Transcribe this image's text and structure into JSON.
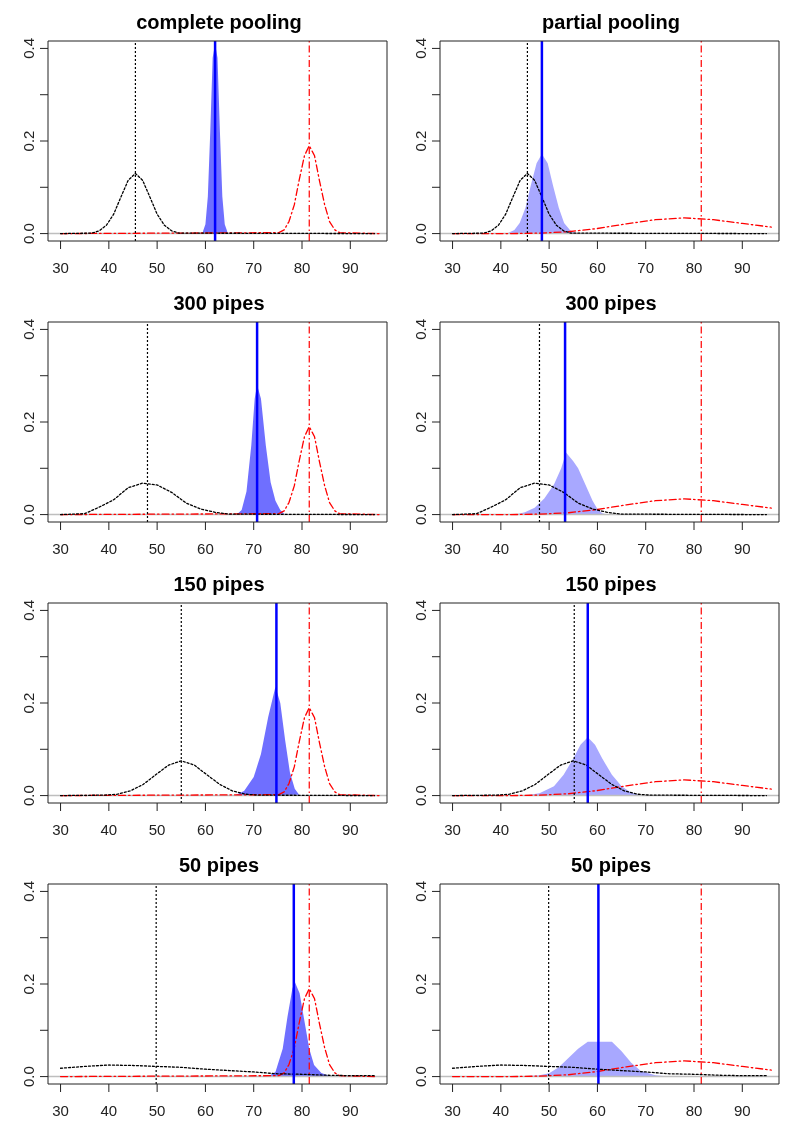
{
  "chart_data": [
    {
      "type": "line",
      "title": "complete pooling",
      "xlim": [
        27.4,
        97.6
      ],
      "ylim": [
        -0.016,
        0.416
      ],
      "xticks": [
        30,
        40,
        50,
        60,
        70,
        80,
        90
      ],
      "yticks": [
        {
          "value": 0,
          "label": "0.0"
        },
        {
          "value": 0.1,
          "label": null
        },
        {
          "value": 0.2,
          "label": "0.2"
        },
        {
          "value": 0.3,
          "label": null
        },
        {
          "value": 0.4,
          "label": "0.4"
        }
      ],
      "series": [
        {
          "type": "area",
          "color": "#6f6fff",
          "x": [
            59.5,
            60,
            60.5,
            61,
            61.5,
            62,
            62.5,
            63,
            63.5,
            64,
            64.5
          ],
          "values": [
            0.005,
            0.02,
            0.08,
            0.22,
            0.38,
            0.41,
            0.38,
            0.22,
            0.08,
            0.02,
            0.005
          ]
        },
        {
          "type": "line",
          "color": "#000000",
          "line_style": "dotted",
          "x": [
            30,
            36.5,
            38,
            39.5,
            41,
            42.5,
            44,
            45.5,
            47,
            48.5,
            50,
            51.5,
            53,
            54.5,
            95
          ],
          "values": [
            0,
            0.001,
            0.006,
            0.018,
            0.042,
            0.079,
            0.115,
            0.13,
            0.115,
            0.079,
            0.042,
            0.018,
            0.006,
            0.001,
            0
          ]
        },
        {
          "type": "line",
          "color": "#ff0000",
          "line_style": "dashed",
          "x": [
            30,
            75.2,
            76.3,
            77.3,
            78.4,
            79.4,
            80.5,
            81.5,
            82.6,
            83.6,
            84.7,
            85.7,
            86.8,
            87.8,
            96
          ],
          "values": [
            0,
            0.002,
            0.008,
            0.026,
            0.062,
            0.115,
            0.168,
            0.19,
            0.168,
            0.115,
            0.062,
            0.026,
            0.008,
            0.002,
            0
          ]
        }
      ],
      "ref_lines": [
        {
          "axis": "y",
          "value": 0,
          "color": "#bebebe",
          "line_style": "solid"
        },
        {
          "axis": "x",
          "value": 45.5,
          "color": "#000000",
          "line_style": "dotted"
        },
        {
          "axis": "x",
          "value": 62,
          "color": "#0000ff",
          "line_style": "solid"
        },
        {
          "axis": "x",
          "value": 81.5,
          "color": "#ff0000",
          "line_style": "dashed"
        }
      ]
    },
    {
      "type": "line",
      "title": "partial pooling",
      "xlim": [
        27.4,
        97.6
      ],
      "ylim": [
        -0.016,
        0.416
      ],
      "xticks": [
        30,
        40,
        50,
        60,
        70,
        80,
        90
      ],
      "yticks": [
        {
          "value": 0,
          "label": "0.0"
        },
        {
          "value": 0.1,
          "label": null
        },
        {
          "value": 0.2,
          "label": "0.2"
        },
        {
          "value": 0.3,
          "label": null
        },
        {
          "value": 0.4,
          "label": "0.4"
        }
      ],
      "series": [
        {
          "type": "area",
          "color": "#a8a8ff",
          "x": [
            41.6,
            42.8,
            43.9,
            45.1,
            46.2,
            47.4,
            48.5,
            49.7,
            50.8,
            52,
            53.1,
            54.3,
            55.4
          ],
          "values": [
            0.002,
            0.008,
            0.023,
            0.056,
            0.104,
            0.152,
            0.172,
            0.152,
            0.104,
            0.056,
            0.023,
            0.008,
            0.002
          ]
        },
        {
          "type": "line",
          "color": "#000000",
          "line_style": "dotted",
          "x": [
            30,
            36.5,
            38,
            39.5,
            41,
            42.5,
            44,
            45.5,
            47,
            48.5,
            50,
            51.5,
            53,
            54.5,
            95
          ],
          "values": [
            0,
            0.001,
            0.006,
            0.018,
            0.042,
            0.079,
            0.115,
            0.13,
            0.115,
            0.079,
            0.042,
            0.018,
            0.006,
            0.001,
            0
          ]
        },
        {
          "type": "line",
          "color": "#ff0000",
          "line_style": "dashed",
          "x": [
            30,
            36,
            42,
            48,
            54,
            60,
            66,
            72,
            78,
            84,
            90,
            96
          ],
          "values": [
            0,
            0,
            0,
            0.001,
            0.004,
            0.011,
            0.021,
            0.03,
            0.034,
            0.03,
            0.022,
            0.014
          ]
        }
      ],
      "ref_lines": [
        {
          "axis": "y",
          "value": 0,
          "color": "#bebebe",
          "line_style": "solid"
        },
        {
          "axis": "x",
          "value": 45.5,
          "color": "#000000",
          "line_style": "dotted"
        },
        {
          "axis": "x",
          "value": 48.5,
          "color": "#0000ff",
          "line_style": "solid"
        },
        {
          "axis": "x",
          "value": 81.5,
          "color": "#ff0000",
          "line_style": "dashed"
        }
      ]
    },
    {
      "type": "line",
      "title": "300 pipes",
      "xlim": [
        27.4,
        97.6
      ],
      "ylim": [
        -0.016,
        0.416
      ],
      "xticks": [
        30,
        40,
        50,
        60,
        70,
        80,
        90
      ],
      "yticks": [
        {
          "value": 0,
          "label": "0.0"
        },
        {
          "value": 0.1,
          "label": null
        },
        {
          "value": 0.2,
          "label": "0.2"
        },
        {
          "value": 0.3,
          "label": null
        },
        {
          "value": 0.4,
          "label": "0.4"
        }
      ],
      "series": [
        {
          "type": "area",
          "color": "#6f6fff",
          "x": [
            66.5,
            67.5,
            68.5,
            69.5,
            70.2,
            70.7,
            71.5,
            72.5,
            73.5,
            74.5,
            75.5,
            76.5
          ],
          "values": [
            0,
            0.01,
            0.05,
            0.15,
            0.25,
            0.28,
            0.25,
            0.15,
            0.07,
            0.03,
            0.01,
            0
          ]
        },
        {
          "type": "line",
          "color": "#000000",
          "line_style": "dotted",
          "x": [
            30,
            35,
            38,
            41,
            44,
            47,
            50,
            53,
            56,
            59,
            62,
            65,
            95
          ],
          "values": [
            0,
            0.002,
            0.016,
            0.032,
            0.058,
            0.068,
            0.064,
            0.048,
            0.025,
            0.012,
            0.005,
            0.001,
            0
          ]
        },
        {
          "type": "line",
          "color": "#ff0000",
          "line_style": "dashed",
          "x": [
            30,
            75.2,
            76.3,
            77.3,
            78.4,
            79.4,
            80.5,
            81.5,
            82.6,
            83.6,
            84.7,
            85.7,
            86.8,
            87.8,
            96
          ],
          "values": [
            0,
            0.002,
            0.008,
            0.026,
            0.062,
            0.115,
            0.168,
            0.19,
            0.168,
            0.115,
            0.062,
            0.026,
            0.008,
            0.002,
            0
          ]
        }
      ],
      "ref_lines": [
        {
          "axis": "y",
          "value": 0,
          "color": "#bebebe",
          "line_style": "solid"
        },
        {
          "axis": "x",
          "value": 48,
          "color": "#000000",
          "line_style": "dotted"
        },
        {
          "axis": "x",
          "value": 70.7,
          "color": "#0000ff",
          "line_style": "solid"
        },
        {
          "axis": "x",
          "value": 81.5,
          "color": "#ff0000",
          "line_style": "dashed"
        }
      ]
    },
    {
      "type": "line",
      "title": "300 pipes",
      "xlim": [
        27.4,
        97.6
      ],
      "ylim": [
        -0.016,
        0.416
      ],
      "xticks": [
        30,
        40,
        50,
        60,
        70,
        80,
        90
      ],
      "yticks": [
        {
          "value": 0,
          "label": "0.0"
        },
        {
          "value": 0.1,
          "label": null
        },
        {
          "value": 0.2,
          "label": "0.2"
        },
        {
          "value": 0.3,
          "label": null
        },
        {
          "value": 0.4,
          "label": "0.4"
        }
      ],
      "series": [
        {
          "type": "area",
          "color": "#a8a8ff",
          "x": [
            43,
            45,
            47,
            49,
            51,
            52.5,
            53.5,
            55,
            56,
            57.5,
            59,
            60,
            61,
            62
          ],
          "values": [
            0,
            0.005,
            0.015,
            0.035,
            0.065,
            0.1,
            0.134,
            0.115,
            0.1,
            0.065,
            0.03,
            0.012,
            0.003,
            0
          ]
        },
        {
          "type": "line",
          "color": "#000000",
          "line_style": "dotted",
          "x": [
            30,
            35,
            38,
            41,
            44,
            47,
            50,
            53,
            56,
            59,
            62,
            65,
            95
          ],
          "values": [
            0,
            0.002,
            0.016,
            0.032,
            0.058,
            0.068,
            0.064,
            0.048,
            0.025,
            0.012,
            0.005,
            0.001,
            0
          ]
        },
        {
          "type": "line",
          "color": "#ff0000",
          "line_style": "dashed",
          "x": [
            30,
            36,
            42,
            48,
            54,
            60,
            66,
            72,
            78,
            84,
            90,
            96
          ],
          "values": [
            0,
            0,
            0,
            0.001,
            0.004,
            0.011,
            0.021,
            0.03,
            0.034,
            0.03,
            0.022,
            0.014
          ]
        }
      ],
      "ref_lines": [
        {
          "axis": "y",
          "value": 0,
          "color": "#bebebe",
          "line_style": "solid"
        },
        {
          "axis": "x",
          "value": 48,
          "color": "#000000",
          "line_style": "dotted"
        },
        {
          "axis": "x",
          "value": 53.3,
          "color": "#0000ff",
          "line_style": "solid"
        },
        {
          "axis": "x",
          "value": 81.5,
          "color": "#ff0000",
          "line_style": "dashed"
        }
      ]
    },
    {
      "type": "line",
      "title": "150 pipes",
      "xlim": [
        27.4,
        97.6
      ],
      "ylim": [
        -0.016,
        0.416
      ],
      "xticks": [
        30,
        40,
        50,
        60,
        70,
        80,
        90
      ],
      "yticks": [
        {
          "value": 0,
          "label": "0.0"
        },
        {
          "value": 0.1,
          "label": null
        },
        {
          "value": 0.2,
          "label": "0.2"
        },
        {
          "value": 0.3,
          "label": null
        },
        {
          "value": 0.4,
          "label": "0.4"
        }
      ],
      "series": [
        {
          "type": "area",
          "color": "#6f6fff",
          "x": [
            66,
            68,
            70,
            71.5,
            73,
            74.5,
            75.5,
            76.5,
            77.5,
            78.5,
            79.5
          ],
          "values": [
            0,
            0.01,
            0.04,
            0.09,
            0.17,
            0.235,
            0.2,
            0.12,
            0.05,
            0.015,
            0
          ]
        },
        {
          "type": "line",
          "color": "#000000",
          "line_style": "dotted",
          "x": [
            30,
            39.1,
            41.8,
            44.4,
            47.1,
            49.7,
            52.4,
            55,
            57.7,
            60.3,
            63,
            65.6,
            68.3,
            70.9,
            95
          ],
          "values": [
            0,
            0.001,
            0.003,
            0.01,
            0.024,
            0.045,
            0.066,
            0.075,
            0.066,
            0.045,
            0.024,
            0.01,
            0.003,
            0.001,
            0
          ]
        },
        {
          "type": "line",
          "color": "#ff0000",
          "line_style": "dashed",
          "x": [
            30,
            75.2,
            76.3,
            77.3,
            78.4,
            79.4,
            80.5,
            81.5,
            82.6,
            83.6,
            84.7,
            85.7,
            86.8,
            87.8,
            96
          ],
          "values": [
            0,
            0.002,
            0.008,
            0.026,
            0.062,
            0.115,
            0.168,
            0.19,
            0.168,
            0.115,
            0.062,
            0.026,
            0.008,
            0.002,
            0
          ]
        }
      ],
      "ref_lines": [
        {
          "axis": "y",
          "value": 0,
          "color": "#bebebe",
          "line_style": "solid"
        },
        {
          "axis": "x",
          "value": 55,
          "color": "#000000",
          "line_style": "dotted"
        },
        {
          "axis": "x",
          "value": 74.7,
          "color": "#0000ff",
          "line_style": "solid"
        },
        {
          "axis": "x",
          "value": 81.5,
          "color": "#ff0000",
          "line_style": "dashed"
        }
      ]
    },
    {
      "type": "line",
      "title": "150 pipes",
      "xlim": [
        27.4,
        97.6
      ],
      "ylim": [
        -0.016,
        0.416
      ],
      "xticks": [
        30,
        40,
        50,
        60,
        70,
        80,
        90
      ],
      "yticks": [
        {
          "value": 0,
          "label": "0.0"
        },
        {
          "value": 0.1,
          "label": null
        },
        {
          "value": 0.2,
          "label": "0.2"
        },
        {
          "value": 0.3,
          "label": null
        },
        {
          "value": 0.4,
          "label": "0.4"
        }
      ],
      "series": [
        {
          "type": "area",
          "color": "#a8a8ff",
          "x": [
            45,
            48,
            51,
            53,
            55,
            56.5,
            58,
            59.5,
            61,
            63,
            65,
            67,
            69
          ],
          "values": [
            0,
            0.005,
            0.02,
            0.045,
            0.08,
            0.11,
            0.126,
            0.11,
            0.08,
            0.045,
            0.02,
            0.006,
            0
          ]
        },
        {
          "type": "line",
          "color": "#000000",
          "line_style": "dotted",
          "x": [
            30,
            39.1,
            41.8,
            44.4,
            47.1,
            49.7,
            52.4,
            55,
            57.7,
            60.3,
            63,
            65.6,
            68.3,
            70.9,
            95
          ],
          "values": [
            0,
            0.001,
            0.003,
            0.01,
            0.024,
            0.045,
            0.066,
            0.075,
            0.066,
            0.045,
            0.024,
            0.01,
            0.003,
            0.001,
            0
          ]
        },
        {
          "type": "line",
          "color": "#ff0000",
          "line_style": "dashed",
          "x": [
            30,
            36,
            42,
            48,
            54,
            60,
            66,
            72,
            78,
            84,
            90,
            96
          ],
          "values": [
            0,
            0,
            0,
            0.001,
            0.004,
            0.011,
            0.021,
            0.03,
            0.034,
            0.03,
            0.022,
            0.014
          ]
        }
      ],
      "ref_lines": [
        {
          "axis": "y",
          "value": 0,
          "color": "#bebebe",
          "line_style": "solid"
        },
        {
          "axis": "x",
          "value": 55.2,
          "color": "#000000",
          "line_style": "dotted"
        },
        {
          "axis": "x",
          "value": 58,
          "color": "#0000ff",
          "line_style": "solid"
        },
        {
          "axis": "x",
          "value": 81.5,
          "color": "#ff0000",
          "line_style": "dashed"
        }
      ]
    },
    {
      "type": "line",
      "title": "50 pipes",
      "xlim": [
        27.4,
        97.6
      ],
      "ylim": [
        -0.016,
        0.416
      ],
      "xticks": [
        30,
        40,
        50,
        60,
        70,
        80,
        90
      ],
      "yticks": [
        {
          "value": 0,
          "label": "0.0"
        },
        {
          "value": 0.1,
          "label": null
        },
        {
          "value": 0.2,
          "label": "0.2"
        },
        {
          "value": 0.3,
          "label": null
        },
        {
          "value": 0.4,
          "label": "0.4"
        }
      ],
      "series": [
        {
          "type": "area",
          "color": "#6f6fff",
          "x": [
            73,
            74.5,
            76,
            77,
            78,
            78.5,
            79.5,
            80.5,
            81.5,
            82.5,
            84,
            86
          ],
          "values": [
            0,
            0.01,
            0.06,
            0.13,
            0.19,
            0.205,
            0.18,
            0.12,
            0.06,
            0.025,
            0.008,
            0
          ]
        },
        {
          "type": "line",
          "color": "#000000",
          "line_style": "dotted",
          "x": [
            30,
            35,
            40,
            45,
            50,
            55,
            60,
            65,
            70,
            75,
            80,
            85,
            90,
            95
          ],
          "values": [
            0.018,
            0.022,
            0.025,
            0.024,
            0.022,
            0.02,
            0.016,
            0.013,
            0.01,
            0.006,
            0.005,
            0.003,
            0.002,
            0.002
          ]
        },
        {
          "type": "line",
          "color": "#ff0000",
          "line_style": "dashed",
          "x": [
            30,
            75.2,
            76.3,
            77.3,
            78.4,
            79.4,
            80.5,
            81.5,
            82.6,
            83.6,
            84.7,
            85.7,
            86.8,
            87.8,
            95
          ],
          "values": [
            0,
            0.002,
            0.008,
            0.026,
            0.062,
            0.115,
            0.168,
            0.19,
            0.168,
            0.115,
            0.062,
            0.026,
            0.008,
            0.002,
            0
          ]
        }
      ],
      "ref_lines": [
        {
          "axis": "y",
          "value": 0,
          "color": "#bebebe",
          "line_style": "solid"
        },
        {
          "axis": "x",
          "value": 49.8,
          "color": "#000000",
          "line_style": "dotted"
        },
        {
          "axis": "x",
          "value": 78.3,
          "color": "#0000ff",
          "line_style": "solid"
        },
        {
          "axis": "x",
          "value": 81.5,
          "color": "#ff0000",
          "line_style": "dashed"
        }
      ]
    },
    {
      "type": "line",
      "title": "50 pipes",
      "xlim": [
        27.4,
        97.6
      ],
      "ylim": [
        -0.016,
        0.416
      ],
      "xticks": [
        30,
        40,
        50,
        60,
        70,
        80,
        90
      ],
      "yticks": [
        {
          "value": 0,
          "label": "0.0"
        },
        {
          "value": 0.1,
          "label": null
        },
        {
          "value": 0.2,
          "label": "0.2"
        },
        {
          "value": 0.3,
          "label": null
        },
        {
          "value": 0.4,
          "label": "0.4"
        }
      ],
      "series": [
        {
          "type": "area",
          "color": "#a8a8ff",
          "x": [
            44,
            48,
            50,
            52,
            54,
            56,
            58,
            63,
            65,
            67,
            69,
            72,
            75
          ],
          "values": [
            0,
            0.003,
            0.007,
            0.02,
            0.04,
            0.06,
            0.075,
            0.075,
            0.055,
            0.03,
            0.012,
            0.003,
            0
          ]
        },
        {
          "type": "line",
          "color": "#000000",
          "line_style": "dotted",
          "x": [
            30,
            35,
            40,
            45,
            50,
            55,
            60,
            65,
            70,
            75,
            80,
            85,
            90,
            95
          ],
          "values": [
            0.018,
            0.022,
            0.025,
            0.024,
            0.022,
            0.02,
            0.016,
            0.013,
            0.01,
            0.006,
            0.005,
            0.003,
            0.002,
            0.002
          ]
        },
        {
          "type": "line",
          "color": "#ff0000",
          "line_style": "dashed",
          "x": [
            30,
            36,
            42,
            48,
            54,
            60,
            66,
            72,
            78,
            84,
            90,
            96
          ],
          "values": [
            0,
            0,
            0,
            0.001,
            0.004,
            0.011,
            0.021,
            0.03,
            0.034,
            0.03,
            0.022,
            0.014
          ]
        }
      ],
      "ref_lines": [
        {
          "axis": "y",
          "value": 0,
          "color": "#bebebe",
          "line_style": "solid"
        },
        {
          "axis": "x",
          "value": 49.9,
          "color": "#000000",
          "line_style": "dotted"
        },
        {
          "axis": "x",
          "value": 60.2,
          "color": "#0000ff",
          "line_style": "solid"
        },
        {
          "axis": "x",
          "value": 81.5,
          "color": "#ff0000",
          "line_style": "dashed"
        }
      ]
    }
  ]
}
